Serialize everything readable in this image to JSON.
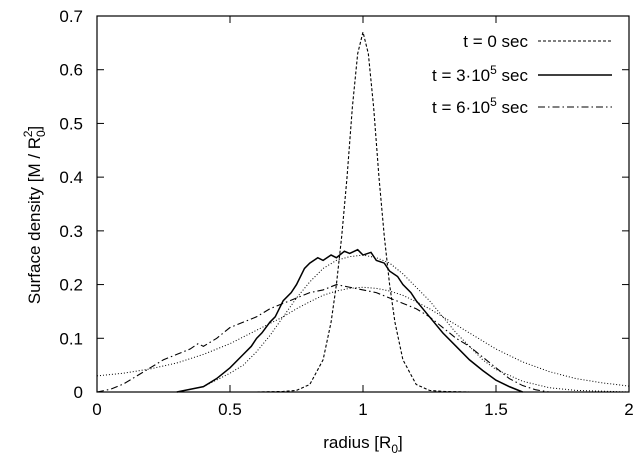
{
  "chart_data": {
    "type": "line",
    "xlabel": "radius",
    "xlabel_unit_base": "R",
    "xlabel_unit_sub": "0",
    "ylabel": "Surface density",
    "ylabel_unit_prefix": "M / R",
    "ylabel_unit_sub": "0",
    "ylabel_unit_sup": "2",
    "xlim": [
      0,
      2
    ],
    "ylim": [
      0,
      0.7
    ],
    "x_ticks": [
      "0",
      "0.5",
      "1",
      "1.5",
      "2"
    ],
    "y_ticks": [
      "0",
      "0.1",
      "0.2",
      "0.3",
      "0.4",
      "0.5",
      "0.6",
      "0.7"
    ],
    "grid": false,
    "legend_position": "top-right",
    "series": [
      {
        "name": "t = 0 sec",
        "name_parts": {
          "pre": "t = 0 sec",
          "sup": "",
          "post": ""
        },
        "style": "dashed",
        "x": [
          0.6,
          0.7,
          0.75,
          0.8,
          0.85,
          0.88,
          0.9,
          0.92,
          0.94,
          0.96,
          0.98,
          1.0,
          1.02,
          1.04,
          1.06,
          1.08,
          1.1,
          1.12,
          1.15,
          1.2,
          1.25,
          1.3,
          1.4,
          1.5
        ],
        "values": [
          0.0,
          0.001,
          0.003,
          0.014,
          0.06,
          0.13,
          0.2,
          0.29,
          0.4,
          0.53,
          0.63,
          0.67,
          0.63,
          0.53,
          0.4,
          0.29,
          0.2,
          0.13,
          0.06,
          0.014,
          0.003,
          0.001,
          0.0,
          0.0
        ]
      },
      {
        "name": "t = 3·10⁵ sec",
        "name_parts": {
          "pre": "t = 3·10",
          "sup": "5",
          "post": " sec"
        },
        "style": "solid",
        "x": [
          0.3,
          0.4,
          0.45,
          0.5,
          0.55,
          0.58,
          0.6,
          0.62,
          0.65,
          0.67,
          0.7,
          0.73,
          0.75,
          0.78,
          0.8,
          0.83,
          0.85,
          0.88,
          0.9,
          0.93,
          0.95,
          0.98,
          1.0,
          1.03,
          1.05,
          1.08,
          1.1,
          1.13,
          1.15,
          1.18,
          1.2,
          1.25,
          1.3,
          1.35,
          1.4,
          1.45,
          1.5,
          1.55,
          1.6
        ],
        "values": [
          0.0,
          0.01,
          0.025,
          0.045,
          0.07,
          0.085,
          0.1,
          0.11,
          0.13,
          0.14,
          0.17,
          0.185,
          0.2,
          0.23,
          0.24,
          0.25,
          0.245,
          0.255,
          0.25,
          0.262,
          0.258,
          0.265,
          0.255,
          0.26,
          0.245,
          0.24,
          0.225,
          0.215,
          0.2,
          0.185,
          0.17,
          0.14,
          0.11,
          0.085,
          0.06,
          0.04,
          0.022,
          0.01,
          0.0
        ]
      },
      {
        "name": "t = 6·10⁵ sec",
        "name_parts": {
          "pre": "t = 6·10",
          "sup": "5",
          "post": " sec"
        },
        "style": "dash-dot",
        "x": [
          0.0,
          0.05,
          0.1,
          0.15,
          0.2,
          0.25,
          0.3,
          0.35,
          0.38,
          0.4,
          0.45,
          0.5,
          0.55,
          0.6,
          0.65,
          0.7,
          0.75,
          0.8,
          0.85,
          0.9,
          0.95,
          1.0,
          1.05,
          1.1,
          1.15,
          1.2,
          1.25,
          1.3,
          1.35,
          1.4,
          1.45,
          1.5,
          1.55,
          1.6,
          1.65,
          1.7
        ],
        "values": [
          0.0,
          0.005,
          0.015,
          0.03,
          0.045,
          0.06,
          0.07,
          0.08,
          0.09,
          0.085,
          0.1,
          0.12,
          0.13,
          0.14,
          0.155,
          0.165,
          0.175,
          0.185,
          0.19,
          0.2,
          0.195,
          0.19,
          0.185,
          0.175,
          0.165,
          0.155,
          0.14,
          0.12,
          0.1,
          0.085,
          0.065,
          0.045,
          0.025,
          0.012,
          0.004,
          0.0
        ]
      },
      {
        "style": "dotted",
        "x": [
          0.0,
          0.1,
          0.2,
          0.3,
          0.4,
          0.5,
          0.6,
          0.7,
          0.75,
          0.8,
          0.85,
          0.9,
          0.95,
          1.0,
          1.05,
          1.1,
          1.15,
          1.2,
          1.25,
          1.3,
          1.4,
          1.5,
          1.6,
          1.7,
          1.8,
          1.9,
          2.0
        ],
        "values": [
          0.03,
          0.035,
          0.043,
          0.054,
          0.07,
          0.09,
          0.115,
          0.14,
          0.155,
          0.168,
          0.18,
          0.188,
          0.193,
          0.195,
          0.193,
          0.188,
          0.18,
          0.168,
          0.155,
          0.14,
          0.11,
          0.08,
          0.056,
          0.038,
          0.025,
          0.017,
          0.011
        ]
      },
      {
        "style": "dotted",
        "x": [
          0.4,
          0.5,
          0.55,
          0.6,
          0.65,
          0.7,
          0.75,
          0.8,
          0.85,
          0.9,
          0.95,
          1.0,
          1.05,
          1.1,
          1.15,
          1.2,
          1.25,
          1.3,
          1.35,
          1.4,
          1.45,
          1.5,
          1.6,
          1.7,
          1.8,
          2.0
        ],
        "values": [
          0.01,
          0.035,
          0.05,
          0.075,
          0.105,
          0.14,
          0.175,
          0.205,
          0.23,
          0.245,
          0.252,
          0.255,
          0.25,
          0.24,
          0.22,
          0.195,
          0.17,
          0.14,
          0.11,
          0.085,
          0.06,
          0.042,
          0.02,
          0.008,
          0.003,
          0.0
        ]
      }
    ]
  }
}
